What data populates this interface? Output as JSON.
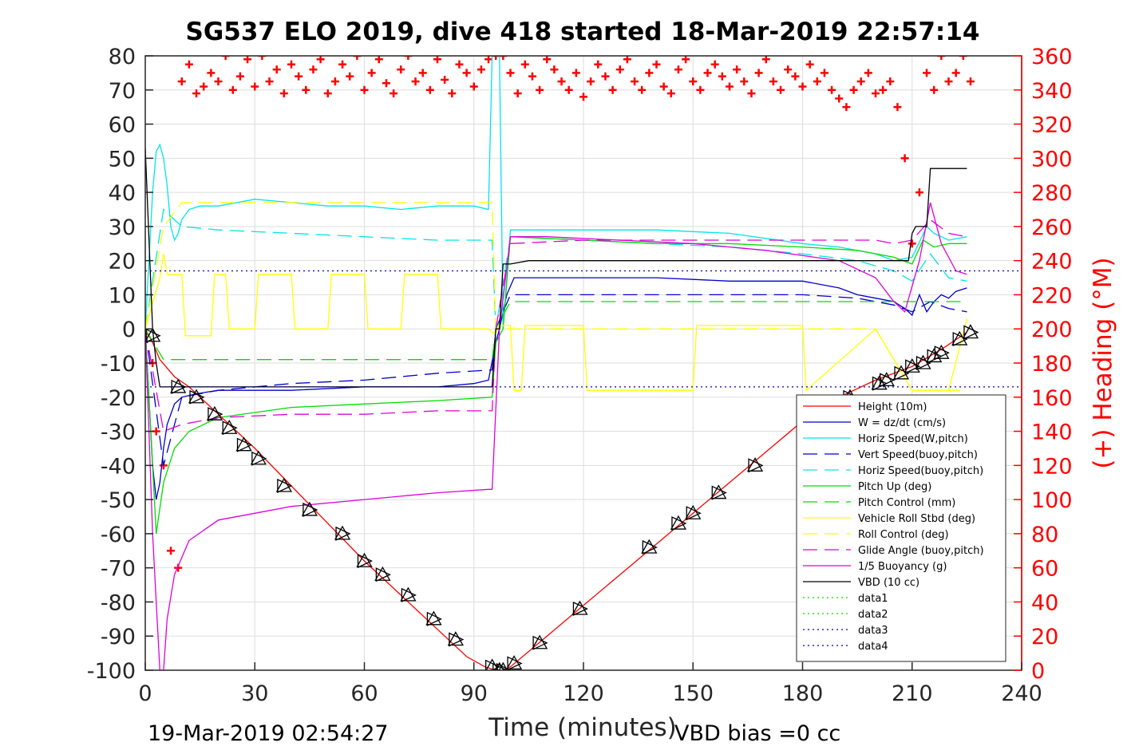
{
  "chart_data": {
    "type": "line",
    "title": "SG537 ELO 2019, dive 418 started 18-Mar-2019 22:57:14",
    "xlabel": "Time (minutes)",
    "ylabel_right": "(+) Heading (°M)",
    "footer_left": "19-Mar-2019 02:54:27",
    "footer_right": "VBD bias =0 cc",
    "xlim": [
      0,
      240
    ],
    "ylim": [
      -100,
      80
    ],
    "ylim_right": [
      0,
      360
    ],
    "x_ticks": [
      "0",
      "30",
      "60",
      "90",
      "120",
      "150",
      "180",
      "210",
      "240"
    ],
    "y_ticks": [
      "80",
      "70",
      "60",
      "50",
      "40",
      "30",
      "20",
      "10",
      "0",
      "-10",
      "-20",
      "-30",
      "-40",
      "-50",
      "-60",
      "-70",
      "-80",
      "-90",
      "-100"
    ],
    "y_ticks_right": [
      "360",
      "340",
      "320",
      "300",
      "280",
      "260",
      "240",
      "220",
      "200",
      "180",
      "160",
      "140",
      "120",
      "100",
      "80",
      "60",
      "40",
      "20",
      "0"
    ],
    "grid": true,
    "legend_position": "bottom-right",
    "series": [
      {
        "name": "Height (10m)",
        "color": "#ff0000",
        "style": "solid",
        "x": [
          0,
          1,
          2,
          4,
          8,
          12,
          20,
          30,
          40,
          50,
          60,
          70,
          80,
          88,
          93,
          96,
          98,
          100,
          110,
          120,
          130,
          140,
          150,
          160,
          170,
          180,
          190,
          200,
          210,
          218,
          225
        ],
        "y": [
          -1,
          -2,
          -4,
          -9,
          -14,
          -17,
          -25,
          -35,
          -46,
          -57,
          -68,
          -78,
          -88,
          -96,
          -99,
          -100,
          -100,
          -99,
          -90,
          -81,
          -72,
          -63,
          -54,
          -45,
          -36,
          -27,
          -20,
          -15,
          -11,
          -6,
          -1
        ]
      },
      {
        "name": "W = dz/dt (cm/s)",
        "color": "#0000cc",
        "style": "solid",
        "x": [
          0,
          1,
          2,
          3,
          4,
          5,
          6,
          8,
          10,
          14,
          20,
          40,
          60,
          80,
          90,
          94,
          96,
          97,
          99,
          101,
          110,
          120,
          140,
          160,
          180,
          190,
          195,
          200,
          205,
          208,
          210,
          212,
          214,
          216,
          218,
          220,
          222,
          225
        ],
        "y": [
          0,
          -20,
          -40,
          -50,
          -45,
          -35,
          -28,
          -22,
          -20,
          -19,
          -18,
          -18,
          -17,
          -17,
          -16,
          -15,
          -4,
          0,
          10,
          15,
          15,
          15,
          15,
          14,
          14,
          12,
          10,
          9,
          8,
          6,
          4,
          10,
          5,
          8,
          10,
          9,
          11,
          12
        ]
      },
      {
        "name": "Horiz Speed(W,pitch)",
        "color": "#00e5e5",
        "style": "solid",
        "x": [
          0,
          1,
          2,
          3,
          4,
          5,
          6,
          7,
          8,
          9,
          10,
          12,
          15,
          20,
          30,
          40,
          50,
          60,
          70,
          80,
          90,
          94,
          95,
          96,
          97,
          98,
          100,
          110,
          120,
          140,
          160,
          180,
          190,
          200,
          205,
          210,
          214,
          216,
          218,
          220,
          225
        ],
        "y": [
          0,
          20,
          40,
          52,
          54,
          50,
          42,
          30,
          26,
          28,
          32,
          35,
          36,
          36,
          38,
          37,
          36,
          36,
          35,
          36,
          36,
          35,
          80,
          80,
          80,
          0,
          29,
          29,
          29,
          29,
          28,
          25,
          24,
          22,
          20,
          21,
          30,
          28,
          27,
          26,
          27
        ]
      },
      {
        "name": "Vert Speed(buoy,pitch)",
        "color": "#0000cc",
        "style": "dashed",
        "x": [
          0,
          5,
          10,
          20,
          40,
          60,
          80,
          95,
          96,
          100,
          120,
          140,
          160,
          180,
          195,
          205,
          210,
          215,
          220,
          225
        ],
        "y": [
          0,
          -40,
          -20,
          -18,
          -16,
          -15,
          -13,
          -12,
          0,
          10,
          10,
          10,
          10,
          10,
          9,
          7,
          5,
          8,
          6,
          5
        ]
      },
      {
        "name": "Horiz Speed(buoy,pitch)",
        "color": "#00e5e5",
        "style": "dashed",
        "x": [
          0,
          5,
          10,
          20,
          40,
          60,
          80,
          95,
          96,
          100,
          120,
          140,
          160,
          180,
          195,
          205,
          210,
          215,
          220,
          225
        ],
        "y": [
          0,
          35,
          30,
          29,
          28,
          27,
          26,
          26,
          0,
          27,
          26,
          25,
          24,
          22,
          20,
          17,
          14,
          22,
          15,
          14
        ]
      },
      {
        "name": "Pitch Up (deg)",
        "color": "#00dd00",
        "style": "solid",
        "x": [
          0,
          3,
          5,
          8,
          12,
          20,
          40,
          60,
          80,
          95,
          96,
          98,
          100,
          120,
          140,
          160,
          180,
          195,
          205,
          210,
          213,
          216,
          220,
          225
        ],
        "y": [
          0,
          -60,
          -45,
          -35,
          -30,
          -26,
          -23,
          -22,
          -21,
          -20,
          -4,
          0,
          27,
          26,
          25,
          25,
          24,
          23,
          21,
          19,
          26,
          24,
          25,
          25
        ]
      },
      {
        "name": "Pitch Control (mm)",
        "color": "#00dd00",
        "style": "dashed",
        "x": [
          0,
          5,
          10,
          40,
          60,
          80,
          95,
          96,
          100,
          120,
          160,
          200,
          225
        ],
        "y": [
          0,
          -9,
          -9,
          -9,
          -9,
          -9,
          -9,
          0,
          8,
          8,
          8,
          8,
          8
        ]
      },
      {
        "name": "Vehicle Roll Stbd (deg)",
        "color": "#ffff00",
        "style": "solid",
        "x": [
          0,
          4,
          5,
          6,
          10,
          11,
          18,
          19,
          22,
          23,
          30,
          31,
          40,
          41,
          50,
          51,
          60,
          61,
          70,
          71,
          80,
          81,
          90,
          94,
          95,
          96,
          97,
          100,
          101,
          103,
          104,
          120,
          121,
          150,
          151,
          180,
          181,
          200,
          210,
          220,
          225
        ],
        "y": [
          0,
          15,
          22,
          16,
          16,
          -2,
          -2,
          16,
          16,
          0,
          0,
          16,
          16,
          0,
          0,
          16,
          16,
          0,
          0,
          16,
          16,
          0,
          0,
          0,
          -1,
          -1,
          1,
          1,
          -18,
          -18,
          1,
          1,
          -18,
          -18,
          1,
          1,
          -18,
          0,
          -18,
          -18,
          3
        ]
      },
      {
        "name": "Roll Control (deg)",
        "color": "#ffff00",
        "style": "dashed",
        "x": [
          0,
          5,
          10,
          60,
          95,
          96,
          100,
          200,
          210,
          225
        ],
        "y": [
          0,
          30,
          37,
          37,
          37,
          0,
          0,
          0,
          -18,
          -18
        ]
      },
      {
        "name": "Glide Angle (buoy,pitch)",
        "color": "#dd00dd",
        "style": "dashed",
        "x": [
          0,
          5,
          10,
          20,
          40,
          60,
          80,
          95,
          96,
          100,
          120,
          140,
          160,
          180,
          200,
          205,
          210,
          215,
          220,
          225
        ],
        "y": [
          0,
          -30,
          -28,
          -26,
          -25,
          -25,
          -24,
          -24,
          0,
          25,
          26,
          26,
          26,
          26,
          26,
          25,
          26,
          32,
          28,
          27
        ]
      },
      {
        "name": "1/5 Buoyancy (g)",
        "color": "#dd00dd",
        "style": "solid",
        "x": [
          0,
          2,
          3,
          4,
          5,
          6,
          8,
          12,
          20,
          40,
          60,
          80,
          94,
          95,
          97,
          100,
          110,
          130,
          150,
          170,
          190,
          200,
          205,
          208,
          212,
          215,
          218,
          222,
          225
        ],
        "y": [
          0,
          -60,
          -80,
          -100,
          -100,
          -85,
          -72,
          -62,
          -56,
          -52,
          -50,
          -48,
          -47,
          -47,
          0,
          27,
          27,
          26,
          25,
          23,
          20,
          15,
          8,
          5,
          20,
          37,
          25,
          17,
          16
        ]
      },
      {
        "name": "VBD (10 cc)",
        "color": "#000000",
        "style": "solid",
        "x": [
          0,
          2,
          3,
          4,
          5,
          95,
          96,
          97,
          98,
          100,
          105,
          150,
          208,
          209,
          210,
          211,
          212,
          214,
          215,
          225
        ],
        "y": [
          53,
          0,
          -10,
          -17,
          -17,
          -17,
          0,
          0,
          19,
          19,
          20,
          20,
          20,
          20,
          28,
          30,
          30,
          30,
          47,
          47
        ]
      },
      {
        "name": "data1",
        "color": "#00dd00",
        "style": "dotted",
        "x": [],
        "y": []
      },
      {
        "name": "data2",
        "color": "#00dd00",
        "style": "dotted",
        "x": [],
        "y": []
      },
      {
        "name": "data3",
        "color": "#0000aa",
        "style": "dotted",
        "x": [
          0,
          240
        ],
        "y": [
          17,
          17
        ]
      },
      {
        "name": "data4",
        "color": "#0000aa",
        "style": "dotted",
        "x": [
          0,
          240
        ],
        "y": [
          -17,
          -17
        ]
      }
    ],
    "heading": {
      "color": "#ff0000",
      "axis": "right",
      "marker": "+",
      "x": [
        2,
        3,
        5,
        7,
        9,
        10,
        12,
        14,
        16,
        18,
        20,
        22,
        24,
        26,
        28,
        30,
        32,
        34,
        36,
        38,
        40,
        42,
        44,
        46,
        48,
        50,
        52,
        54,
        56,
        58,
        60,
        62,
        64,
        66,
        68,
        70,
        72,
        74,
        76,
        78,
        80,
        82,
        84,
        86,
        88,
        90,
        92,
        94,
        96,
        98,
        100,
        102,
        104,
        106,
        108,
        110,
        112,
        114,
        116,
        118,
        120,
        122,
        124,
        126,
        128,
        130,
        132,
        134,
        136,
        138,
        140,
        142,
        144,
        146,
        148,
        150,
        152,
        154,
        156,
        158,
        160,
        162,
        164,
        166,
        168,
        170,
        172,
        174,
        176,
        178,
        180,
        182,
        184,
        186,
        188,
        190,
        192,
        194,
        196,
        198,
        200,
        202,
        204,
        206,
        208,
        210,
        212,
        214,
        216,
        218,
        220,
        222,
        224,
        226
      ],
      "y": [
        180,
        140,
        120,
        70,
        60,
        345,
        355,
        338,
        342,
        350,
        345,
        360,
        340,
        348,
        358,
        342,
        360,
        345,
        352,
        338,
        355,
        348,
        340,
        352,
        358,
        338,
        345,
        355,
        348,
        360,
        340,
        350,
        358,
        344,
        338,
        352,
        360,
        345,
        350,
        340,
        358,
        346,
        338,
        355,
        350,
        342,
        352,
        358,
        360,
        360,
        350,
        338,
        355,
        348,
        340,
        358,
        352,
        345,
        340,
        350,
        336,
        345,
        355,
        348,
        340,
        352,
        358,
        345,
        340,
        350,
        355,
        342,
        338,
        352,
        358,
        345,
        340,
        350,
        355,
        348,
        342,
        352,
        345,
        338,
        350,
        358,
        345,
        340,
        352,
        348,
        342,
        355,
        345,
        350,
        340,
        335,
        330,
        340,
        345,
        350,
        338,
        340,
        345,
        330,
        300,
        250,
        280,
        350,
        340,
        360,
        345,
        350,
        360,
        345
      ]
    },
    "depth_markers": {
      "color": "#000000",
      "x": [
        2,
        9,
        14,
        19,
        23,
        27,
        31,
        38,
        45,
        54,
        60,
        65,
        72,
        79,
        85,
        95,
        97,
        98,
        101,
        108,
        119,
        138,
        146,
        150,
        157,
        167,
        193,
        201,
        203,
        207,
        210,
        213,
        216,
        218,
        223,
        226
      ],
      "y": [
        -2,
        -17,
        -20,
        -25,
        -29,
        -34,
        -38,
        -46,
        -53,
        -60,
        -68,
        -72,
        -78,
        -85,
        -91,
        -99,
        -100,
        -100,
        -98,
        -92,
        -82,
        -64,
        -57,
        -54,
        -48,
        -40,
        -20,
        -16,
        -15,
        -13,
        -11,
        -10,
        -8,
        -7,
        -3,
        -1
      ]
    }
  }
}
